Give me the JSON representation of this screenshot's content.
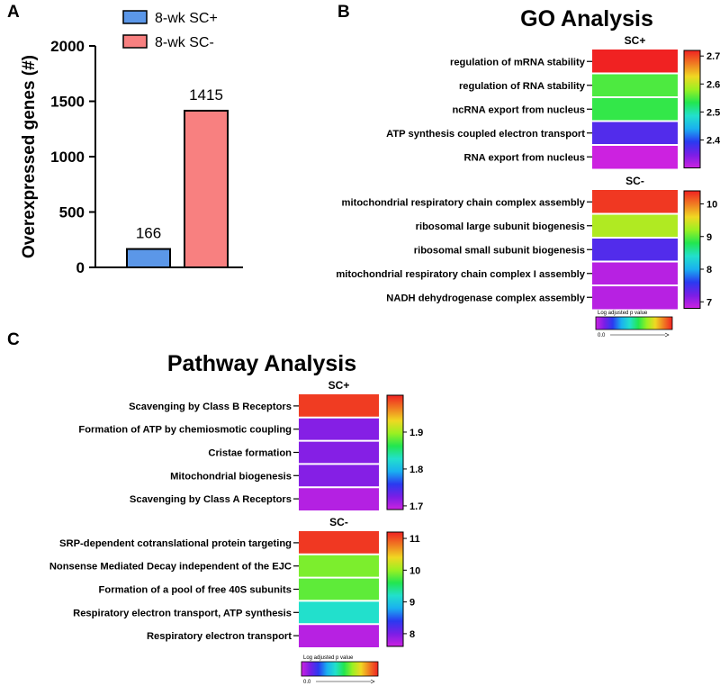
{
  "colors": {
    "sc_plus": "#5b97e8",
    "sc_minus": "#f88080",
    "colormap": [
      "#cc22e0",
      "#7a1ee6",
      "#2a3af0",
      "#1ab0f0",
      "#22e0cc",
      "#22e650",
      "#9af022",
      "#f0d822",
      "#f07a22",
      "#f02222"
    ]
  },
  "panel_a": {
    "letter": "A",
    "legend": [
      "8-wk SC+",
      "8-wk SC-"
    ]
  },
  "panel_b": {
    "letter": "B",
    "title": "GO Analysis"
  },
  "panel_c": {
    "letter": "C",
    "title": "Pathway Analysis"
  },
  "chart_data": [
    {
      "type": "bar",
      "categories": [
        "8-wk SC+",
        "8-wk SC-"
      ],
      "values": [
        166,
        1415
      ],
      "data_labels": [
        "166",
        "1415"
      ],
      "ylabel": "Overexpressed genes (#)",
      "ylim": [
        0,
        2000
      ],
      "yticks": [
        0,
        500,
        1000,
        1500,
        2000
      ],
      "legend_position": "top"
    },
    {
      "type": "heatmap",
      "title": "GO Analysis",
      "groups": [
        {
          "label": "SC+",
          "terms": [
            "regulation of mRNA stability",
            "regulation of RNA stability",
            "ncRNA export from nucleus",
            "ATP synthesis coupled electron transport",
            "RNA export from nucleus"
          ],
          "values": [
            2.72,
            2.55,
            2.54,
            2.37,
            2.3
          ],
          "colorbar_range": [
            2.3,
            2.72
          ],
          "colorbar_ticks": [
            2.4,
            2.5,
            2.6,
            2.7
          ]
        },
        {
          "label": "SC-",
          "terms": [
            "mitochondrial respiratory chain complex assembly",
            "ribosomal large subunit biogenesis",
            "ribosomal small subunit biogenesis",
            "mitochondrial respiratory chain complex I assembly",
            "NADH dehydrogenase complex assembly"
          ],
          "values": [
            10.3,
            9.3,
            7.4,
            6.9,
            6.9
          ],
          "colorbar_range": [
            6.8,
            10.4
          ],
          "colorbar_ticks": [
            7,
            8,
            9,
            10
          ]
        }
      ],
      "scale_label": "Log adjusted p value",
      "scale_min_label": "0.0"
    },
    {
      "type": "heatmap",
      "title": "Pathway Analysis",
      "groups": [
        {
          "label": "SC+",
          "terms": [
            "Scavenging by Class B Receptors",
            "Formation of ATP by chemiosmotic coupling",
            "Cristae formation",
            "Mitochondrial biogenesis",
            "Scavenging by Class A Receptors"
          ],
          "values": [
            1.99,
            1.72,
            1.72,
            1.72,
            1.7
          ],
          "colorbar_range": [
            1.69,
            2.0
          ],
          "colorbar_ticks": [
            1.7,
            1.8,
            1.9
          ]
        },
        {
          "label": "SC-",
          "terms": [
            "SRP-dependent cotranslational protein targeting",
            "Nonsense Mediated Decay independent of the  EJC",
            "Formation of a pool of free 40S subunits",
            "Respiratory electron transport, ATP synthesis",
            "Respiratory electron transport"
          ],
          "values": [
            11.1,
            9.9,
            9.8,
            9.2,
            7.7
          ],
          "colorbar_range": [
            7.6,
            11.2
          ],
          "colorbar_ticks": [
            8,
            9,
            10,
            11
          ]
        }
      ],
      "scale_label": "Log adjusted p value",
      "scale_min_label": "0.0"
    }
  ]
}
